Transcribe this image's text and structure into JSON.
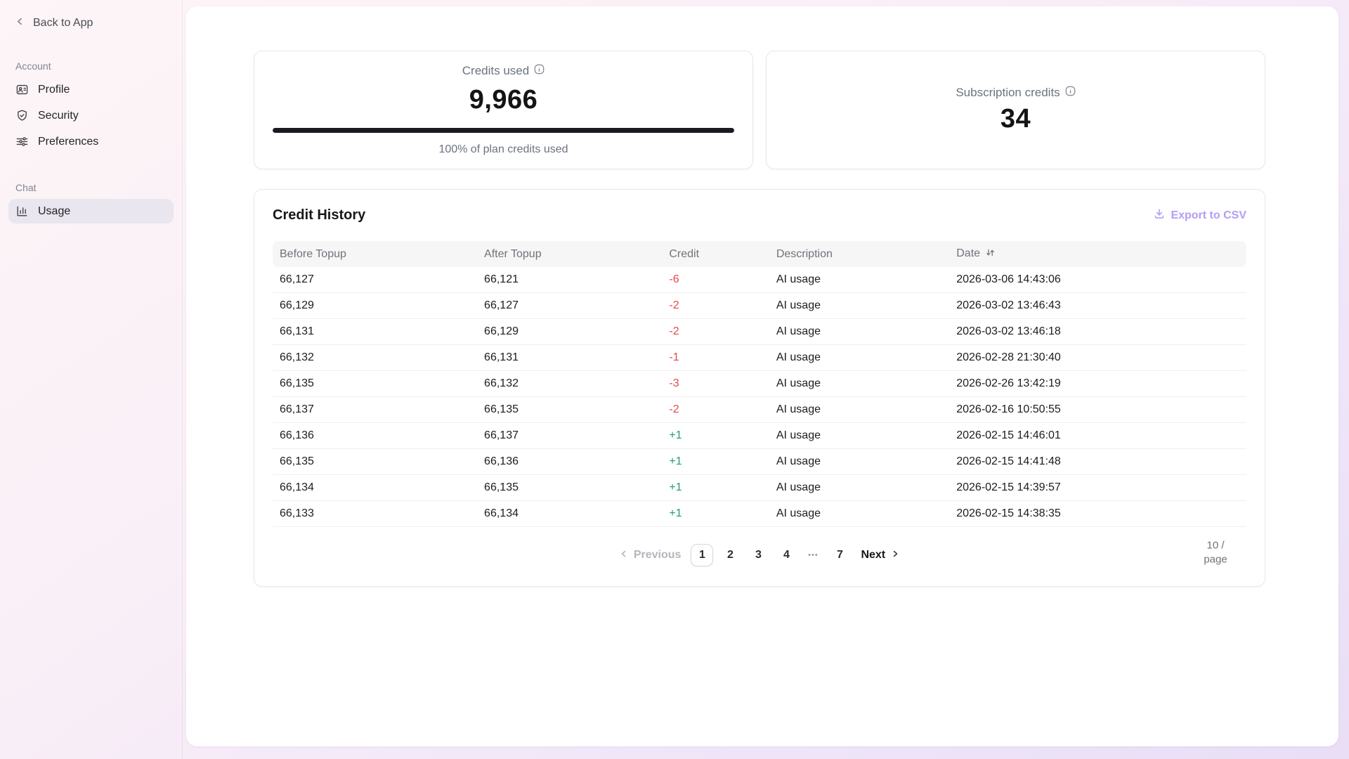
{
  "sidebar": {
    "back": {
      "label": "Back to App",
      "icon": "chevron-left-icon"
    },
    "sections": [
      {
        "title": "Account",
        "items": [
          {
            "label": "Profile",
            "icon": "id-card-icon",
            "active": false
          },
          {
            "label": "Security",
            "icon": "shield-check-icon",
            "active": false
          },
          {
            "label": "Preferences",
            "icon": "sliders-icon",
            "active": false
          }
        ]
      },
      {
        "title": "Chat",
        "items": [
          {
            "label": "Usage",
            "icon": "bar-chart-icon",
            "active": true
          }
        ]
      }
    ]
  },
  "summary_cards": {
    "credits_used": {
      "label": "Credits used",
      "info_icon": "info-icon",
      "value": "9,966",
      "progress_percent": 100,
      "caption": "100% of plan credits used"
    },
    "subscription_credits": {
      "label": "Subscription credits",
      "info_icon": "info-icon",
      "value": "34"
    }
  },
  "credit_history": {
    "title": "Credit History",
    "export_button": {
      "label": "Export to CSV",
      "icon": "download-icon"
    },
    "columns": [
      {
        "key": "before",
        "label": "Before Topup",
        "sortable": false
      },
      {
        "key": "after",
        "label": "After Topup",
        "sortable": false
      },
      {
        "key": "credit",
        "label": "Credit",
        "sortable": false
      },
      {
        "key": "description",
        "label": "Description",
        "sortable": false
      },
      {
        "key": "date",
        "label": "Date",
        "sortable": true
      }
    ],
    "rows": [
      {
        "before": "66,127",
        "after": "66,121",
        "credit": "-6",
        "credit_type": "negative",
        "description": "AI usage",
        "date": "2026-03-06 14:43:06"
      },
      {
        "before": "66,129",
        "after": "66,127",
        "credit": "-2",
        "credit_type": "negative",
        "description": "AI usage",
        "date": "2026-03-02 13:46:43"
      },
      {
        "before": "66,131",
        "after": "66,129",
        "credit": "-2",
        "credit_type": "negative",
        "description": "AI usage",
        "date": "2026-03-02 13:46:18"
      },
      {
        "before": "66,132",
        "after": "66,131",
        "credit": "-1",
        "credit_type": "negative",
        "description": "AI usage",
        "date": "2026-02-28 21:30:40"
      },
      {
        "before": "66,135",
        "after": "66,132",
        "credit": "-3",
        "credit_type": "negative",
        "description": "AI usage",
        "date": "2026-02-26 13:42:19"
      },
      {
        "before": "66,137",
        "after": "66,135",
        "credit": "-2",
        "credit_type": "negative",
        "description": "AI usage",
        "date": "2026-02-16 10:50:55"
      },
      {
        "before": "66,136",
        "after": "66,137",
        "credit": "+1",
        "credit_type": "positive",
        "description": "AI usage",
        "date": "2026-02-15 14:46:01"
      },
      {
        "before": "66,135",
        "after": "66,136",
        "credit": "+1",
        "credit_type": "positive",
        "description": "AI usage",
        "date": "2026-02-15 14:41:48"
      },
      {
        "before": "66,134",
        "after": "66,135",
        "credit": "+1",
        "credit_type": "positive",
        "description": "AI usage",
        "date": "2026-02-15 14:39:57"
      },
      {
        "before": "66,133",
        "after": "66,134",
        "credit": "+1",
        "credit_type": "positive",
        "description": "AI usage",
        "date": "2026-02-15 14:38:35"
      }
    ]
  },
  "pagination": {
    "previous_label": "Previous",
    "pages": [
      "1",
      "2",
      "3",
      "4",
      "•••",
      "7"
    ],
    "active_page": "1",
    "ellipsis": "•••",
    "next_label": "Next",
    "page_size": "10 / page"
  },
  "colors": {
    "accent_purple": "#b49cf6",
    "negative_red": "#e5484d",
    "positive_green": "#22a06b",
    "progress_bar": "#1b1b1f",
    "active_item_bg": "#e9e6ef"
  }
}
